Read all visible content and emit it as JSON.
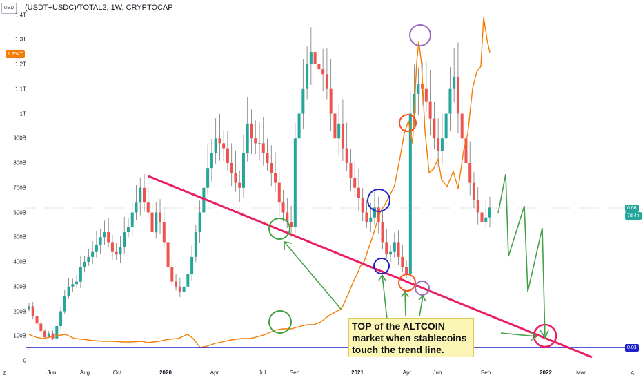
{
  "header": {
    "symbol_title": "(USDT+USDC)/TOTAL2, 1W, CRYPTOCAP",
    "currency_badge": "USD"
  },
  "left_axis": {
    "labels": [
      "1.4T",
      "1.3T",
      "1.2T",
      "1.1T",
      "1T",
      "900B",
      "800B",
      "700B",
      "600B",
      "500B",
      "400B",
      "300B",
      "200B",
      "100B",
      "0"
    ],
    "current_price_badge": "1.254T"
  },
  "right_badges": {
    "price_value": "0.08",
    "countdown": "7d 4h",
    "hline_value": "0.03"
  },
  "x_axis": {
    "labels": [
      "Jun",
      "Aug",
      "Oct",
      "2020",
      "Apr",
      "Jul",
      "Sep",
      "2021",
      "Apr",
      "Jun",
      "Sep",
      "2022",
      "Mar"
    ],
    "bold": [
      "2020",
      "2021",
      "2022"
    ]
  },
  "corners": {
    "bottom_left": "Z",
    "bottom_right": "A"
  },
  "annotation": {
    "lines": [
      "TOP of the ALTCOIN",
      "market when stablecoins",
      "touch the trend line."
    ]
  },
  "colors": {
    "up": "#26a69a",
    "down": "#ef5350",
    "ratio_line": "#f57c00",
    "trend_line": "#e91e63",
    "horizontal_line": "#1e22c8",
    "green_drawing": "#43a047",
    "annotation_bg": "#fbf5b6"
  },
  "chart_data": {
    "type": "candlestick",
    "title": "(USDT+USDC)/TOTAL2, 1W, CRYPTOCAP",
    "y_unit": "USD",
    "ylim": [
      0,
      1400000000000
    ],
    "candles_approx_close_B": [
      220,
      180,
      150,
      120,
      95,
      110,
      90,
      140,
      200,
      260,
      300,
      310,
      320,
      380,
      400,
      420,
      440,
      470,
      500,
      520,
      480,
      440,
      430,
      460,
      520,
      540,
      600,
      640,
      700,
      640,
      600,
      520,
      600,
      560,
      480,
      380,
      320,
      300,
      280,
      300,
      350,
      420,
      520,
      600,
      700,
      780,
      840,
      900,
      880,
      860,
      800,
      760,
      720,
      700,
      840,
      960,
      900,
      880,
      880,
      840,
      800,
      760,
      720,
      640,
      600,
      560,
      540,
      900,
      1000,
      1100,
      1200,
      1250,
      1200,
      1180,
      1160,
      1100,
      1000,
      900,
      960,
      860,
      800,
      740,
      700,
      660,
      600,
      560,
      580,
      620,
      560,
      480,
      430,
      440,
      480,
      420,
      380,
      350,
      1000,
      1080,
      1120,
      1100,
      1050,
      980,
      900,
      850,
      900,
      1000,
      1100,
      1150,
      1000,
      900,
      800,
      720,
      650,
      600,
      560,
      580,
      620
    ]
  }
}
